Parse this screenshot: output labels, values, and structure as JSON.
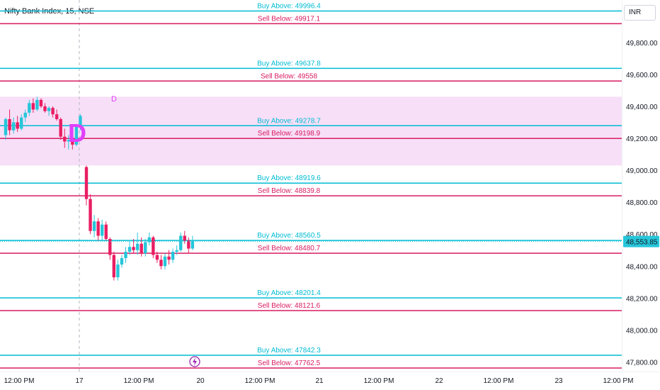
{
  "header": {
    "title": "Nifty Bank Index, 15, NSE",
    "currency": "INR"
  },
  "colors": {
    "buy": "#00bcd4",
    "sell": "#d81b60",
    "zone_fill": "#f7dff7",
    "zone_label": "#e040fb",
    "candle_up": "#26c6da",
    "candle_down": "#e91e63",
    "last_price_bg": "#26c6da"
  },
  "chart_data": {
    "type": "candlestick",
    "title": "Nifty Bank Index, 15, NSE",
    "currency": "INR",
    "ylim": [
      47750,
      50030
    ],
    "y_ticks": [
      47800,
      48000,
      48200,
      48400,
      48600,
      48800,
      49000,
      49200,
      49400,
      49600,
      49800
    ],
    "y_tick_labels": [
      "47,800.00",
      "48,000.00",
      "48,200.00",
      "48,400.00",
      "48,600.00",
      "48,800.00",
      "49,000.00",
      "49,200.00",
      "49,400.00",
      "49,600.00",
      "49,800.00"
    ],
    "x_ticks": [
      {
        "label": "12:00 PM",
        "time": "16 12:00"
      },
      {
        "label": "17",
        "time": "17 00:00"
      },
      {
        "label": "12:00 PM",
        "time": "17 12:00"
      },
      {
        "label": "20",
        "time": "20 00:00"
      },
      {
        "label": "12:00 PM",
        "time": "20 12:00"
      },
      {
        "label": "21",
        "time": "21 00:00"
      },
      {
        "label": "12:00 PM",
        "time": "21 12:00"
      },
      {
        "label": "22",
        "time": "22 00:00"
      },
      {
        "label": "12:00 PM",
        "time": "22 12:00"
      },
      {
        "label": "23",
        "time": "23 00:00"
      },
      {
        "label": "12:00 PM",
        "time": "23 12:00"
      }
    ],
    "last_price": 48553.85,
    "last_price_label": "48,553.85",
    "levels": [
      {
        "kind": "buy",
        "label": "Buy Above: 49996.4",
        "value": 49996.4
      },
      {
        "kind": "sell",
        "label": "Sell Below: 49917.1",
        "value": 49917.1
      },
      {
        "kind": "buy",
        "label": "Buy Above: 49637.8",
        "value": 49637.8
      },
      {
        "kind": "sell",
        "label": "Sell Below: 49558",
        "value": 49558
      },
      {
        "kind": "buy",
        "label": "Buy Above: 49278.7",
        "value": 49278.7
      },
      {
        "kind": "sell",
        "label": "Sell Below: 49198.9",
        "value": 49198.9
      },
      {
        "kind": "buy",
        "label": "Buy Above: 48919.6",
        "value": 48919.6
      },
      {
        "kind": "sell",
        "label": "Sell Below: 48839.8",
        "value": 48839.8
      },
      {
        "kind": "buy",
        "label": "Buy Above: 48560.5",
        "value": 48560.5
      },
      {
        "kind": "sell",
        "label": "Sell Below: 48480.7",
        "value": 48480.7
      },
      {
        "kind": "buy",
        "label": "Buy Above: 48201.4",
        "value": 48201.4
      },
      {
        "kind": "sell",
        "label": "Sell Below: 48121.6",
        "value": 48121.6
      },
      {
        "kind": "buy",
        "label": "Buy Above: 47842.3",
        "value": 47842.3
      },
      {
        "kind": "sell",
        "label": "Sell Below: 47762.5",
        "value": 47762.5
      }
    ],
    "zone": {
      "from": 49030,
      "to": 49460,
      "start_time": "16 09:15",
      "labels": [
        "D",
        "D"
      ]
    },
    "session_break_time": "17 00:00",
    "event_marker_time": "20 00:00",
    "candles": [
      {
        "o": 49220,
        "h": 49330,
        "l": 49190,
        "c": 49320
      },
      {
        "o": 49320,
        "h": 49380,
        "l": 49220,
        "c": 49250
      },
      {
        "o": 49250,
        "h": 49330,
        "l": 49230,
        "c": 49300
      },
      {
        "o": 49300,
        "h": 49340,
        "l": 49240,
        "c": 49260
      },
      {
        "o": 49260,
        "h": 49350,
        "l": 49250,
        "c": 49330
      },
      {
        "o": 49330,
        "h": 49380,
        "l": 49300,
        "c": 49360
      },
      {
        "o": 49360,
        "h": 49440,
        "l": 49340,
        "c": 49420
      },
      {
        "o": 49420,
        "h": 49450,
        "l": 49360,
        "c": 49380
      },
      {
        "o": 49380,
        "h": 49460,
        "l": 49370,
        "c": 49440
      },
      {
        "o": 49440,
        "h": 49450,
        "l": 49390,
        "c": 49400
      },
      {
        "o": 49400,
        "h": 49420,
        "l": 49360,
        "c": 49370
      },
      {
        "o": 49370,
        "h": 49400,
        "l": 49340,
        "c": 49390
      },
      {
        "o": 49390,
        "h": 49400,
        "l": 49330,
        "c": 49350
      },
      {
        "o": 49350,
        "h": 49380,
        "l": 49310,
        "c": 49320
      },
      {
        "o": 49320,
        "h": 49330,
        "l": 49190,
        "c": 49210
      },
      {
        "o": 49210,
        "h": 49260,
        "l": 49140,
        "c": 49180
      },
      {
        "o": 49180,
        "h": 49220,
        "l": 49130,
        "c": 49190
      },
      {
        "o": 49190,
        "h": 49230,
        "l": 49130,
        "c": 49160
      },
      {
        "o": 49160,
        "h": 49290,
        "l": 49150,
        "c": 49280
      },
      {
        "o": 49280,
        "h": 49350,
        "l": 49250,
        "c": 49340
      },
      {
        "o": 49020,
        "h": 49030,
        "l": 48780,
        "c": 48820
      },
      {
        "o": 48820,
        "h": 48850,
        "l": 48600,
        "c": 48620
      },
      {
        "o": 48620,
        "h": 48720,
        "l": 48580,
        "c": 48680
      },
      {
        "o": 48680,
        "h": 48700,
        "l": 48560,
        "c": 48590
      },
      {
        "o": 48590,
        "h": 48690,
        "l": 48560,
        "c": 48660
      },
      {
        "o": 48660,
        "h": 48680,
        "l": 48560,
        "c": 48570
      },
      {
        "o": 48570,
        "h": 48580,
        "l": 48440,
        "c": 48470
      },
      {
        "o": 48470,
        "h": 48490,
        "l": 48310,
        "c": 48330
      },
      {
        "o": 48330,
        "h": 48440,
        "l": 48310,
        "c": 48410
      },
      {
        "o": 48410,
        "h": 48470,
        "l": 48390,
        "c": 48450
      },
      {
        "o": 48450,
        "h": 48520,
        "l": 48420,
        "c": 48490
      },
      {
        "o": 48490,
        "h": 48560,
        "l": 48470,
        "c": 48520
      },
      {
        "o": 48520,
        "h": 48570,
        "l": 48480,
        "c": 48500
      },
      {
        "o": 48500,
        "h": 48610,
        "l": 48470,
        "c": 48540
      },
      {
        "o": 48540,
        "h": 48580,
        "l": 48460,
        "c": 48480
      },
      {
        "o": 48480,
        "h": 48570,
        "l": 48460,
        "c": 48550
      },
      {
        "o": 48550,
        "h": 48610,
        "l": 48530,
        "c": 48580
      },
      {
        "o": 48580,
        "h": 48590,
        "l": 48450,
        "c": 48470
      },
      {
        "o": 48470,
        "h": 48490,
        "l": 48420,
        "c": 48440
      },
      {
        "o": 48440,
        "h": 48470,
        "l": 48380,
        "c": 48400
      },
      {
        "o": 48400,
        "h": 48480,
        "l": 48380,
        "c": 48460
      },
      {
        "o": 48460,
        "h": 48500,
        "l": 48410,
        "c": 48440
      },
      {
        "o": 48440,
        "h": 48510,
        "l": 48420,
        "c": 48490
      },
      {
        "o": 48490,
        "h": 48530,
        "l": 48470,
        "c": 48500
      },
      {
        "o": 48500,
        "h": 48610,
        "l": 48490,
        "c": 48590
      },
      {
        "o": 48590,
        "h": 48620,
        "l": 48540,
        "c": 48560
      },
      {
        "o": 48560,
        "h": 48580,
        "l": 48480,
        "c": 48510
      },
      {
        "o": 48510,
        "h": 48590,
        "l": 48500,
        "c": 48560
      }
    ]
  }
}
